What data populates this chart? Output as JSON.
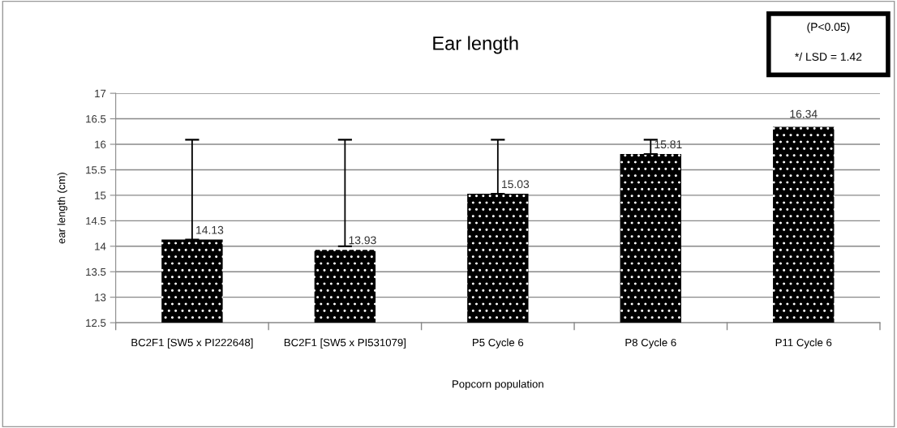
{
  "chart_data": {
    "type": "bar",
    "title": "Ear length",
    "xlabel": "Popcorn population",
    "ylabel": "ear length (cm)",
    "categories": [
      "BC2F1 [SW5 x PI222648]",
      "BC2F1 [SW5 x PI531079]",
      "P5 Cycle 6",
      "P8 Cycle 6",
      "P11 Cycle 6"
    ],
    "values": [
      14.13,
      13.93,
      15.03,
      15.81,
      16.34
    ],
    "errors": [
      [
        14.13,
        16.09
      ],
      [
        14.0,
        16.09
      ],
      [
        15.03,
        16.09
      ],
      [
        15.81,
        16.09
      ],
      null
    ],
    "color": "#000000",
    "ylim": [
      12.5,
      17
    ],
    "yticks": [
      12.5,
      13,
      13.5,
      14,
      14.5,
      15,
      15.5,
      16,
      16.5,
      17
    ],
    "grid": "y",
    "data_labels": true,
    "annotations": [
      "(P<0.05)",
      "*/ LSD = 1.42"
    ]
  }
}
